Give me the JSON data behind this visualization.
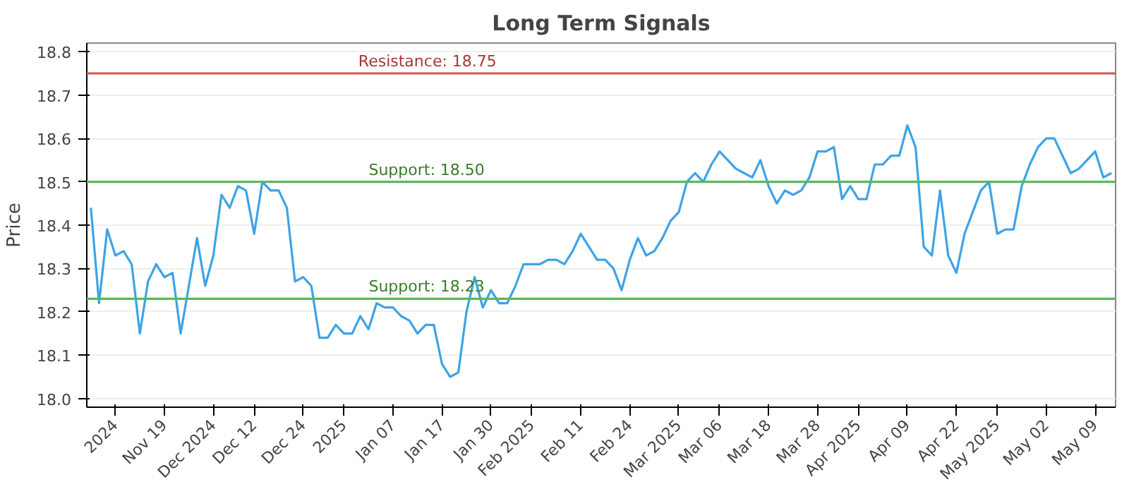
{
  "chart_data": {
    "type": "line",
    "title": "Long Term Signals",
    "ylabel": "Price",
    "categories": [
      null,
      null,
      null,
      "2024",
      null,
      null,
      null,
      null,
      null,
      "Nov 19",
      null,
      null,
      null,
      null,
      null,
      "Dec 2024",
      null,
      null,
      null,
      null,
      "Dec 12",
      null,
      null,
      null,
      null,
      null,
      "Dec 24",
      null,
      null,
      null,
      null,
      "2025",
      null,
      null,
      null,
      null,
      null,
      "Jan 07",
      null,
      null,
      null,
      null,
      null,
      "Jan 17",
      null,
      null,
      null,
      null,
      null,
      "Jan 30",
      null,
      null,
      null,
      null,
      "Feb 2025",
      null,
      null,
      null,
      null,
      null,
      "Feb 11",
      null,
      null,
      null,
      null,
      null,
      "Feb 24",
      null,
      null,
      null,
      null,
      null,
      "Mar 2025",
      null,
      null,
      null,
      null,
      "Mar 06",
      null,
      null,
      null,
      null,
      null,
      "Mar 18",
      null,
      null,
      null,
      null,
      null,
      "Mar 28",
      null,
      null,
      null,
      null,
      "Apr 2025",
      null,
      null,
      null,
      null,
      null,
      "Apr 09",
      null,
      null,
      null,
      null,
      null,
      "Apr 22",
      null,
      null,
      null,
      null,
      "May 2025",
      null,
      null,
      null,
      null,
      null,
      "May 02",
      null,
      null,
      null,
      null,
      null,
      "May 09",
      null,
      null
    ],
    "series": [
      {
        "color": "#3ea3e6",
        "values": [
          18.44,
          18.22,
          18.39,
          18.33,
          18.34,
          18.31,
          18.15,
          18.27,
          18.31,
          18.28,
          18.29,
          18.15,
          18.26,
          18.37,
          18.26,
          18.33,
          18.47,
          18.44,
          18.49,
          18.48,
          18.38,
          18.5,
          18.48,
          18.48,
          18.44,
          18.27,
          18.28,
          18.26,
          18.14,
          18.14,
          18.17,
          18.15,
          18.15,
          18.19,
          18.16,
          18.22,
          18.21,
          18.21,
          18.19,
          18.18,
          18.15,
          18.17,
          18.17,
          18.08,
          18.05,
          18.06,
          18.2,
          18.28,
          18.21,
          18.25,
          18.22,
          18.22,
          18.26,
          18.31,
          18.31,
          18.31,
          18.32,
          18.32,
          18.31,
          18.34,
          18.38,
          18.35,
          18.32,
          18.32,
          18.3,
          18.25,
          18.32,
          18.37,
          18.33,
          18.34,
          18.37,
          18.41,
          18.43,
          18.5,
          18.52,
          18.5,
          18.54,
          18.57,
          18.55,
          18.53,
          18.52,
          18.51,
          18.55,
          18.49,
          18.45,
          18.48,
          18.47,
          18.48,
          18.51,
          18.57,
          18.57,
          18.58,
          18.46,
          18.49,
          18.46,
          18.46,
          18.54,
          18.54,
          18.56,
          18.56,
          18.63,
          18.58,
          18.35,
          18.33,
          18.48,
          18.33,
          18.29,
          18.38,
          18.43,
          18.48,
          18.5,
          18.38,
          18.39,
          18.39,
          18.49,
          18.54,
          18.58,
          18.6,
          18.6,
          18.56,
          18.52,
          18.53,
          18.55,
          18.57,
          18.51,
          18.52
        ]
      }
    ],
    "ylim": [
      17.98,
      18.82
    ],
    "yticks": [
      {
        "value": 18.0,
        "label": "18.0"
      },
      {
        "value": 18.1,
        "label": "18.1"
      },
      {
        "value": 18.2,
        "label": "18.2"
      },
      {
        "value": 18.3,
        "label": "18.3"
      },
      {
        "value": 18.4,
        "label": "18.4"
      },
      {
        "value": 18.5,
        "label": "18.5"
      },
      {
        "value": 18.6,
        "label": "18.6"
      },
      {
        "value": 18.7,
        "label": "18.7"
      },
      {
        "value": 18.8,
        "label": "18.8"
      }
    ],
    "grid": "y",
    "marker": "none",
    "line_style": "solid",
    "ref_lines": [
      {
        "axis": "y",
        "value": 18.75,
        "label": "Resistance: 18.75",
        "color": "#d9534f"
      },
      {
        "axis": "y",
        "value": 18.5,
        "label": "Support: 18.50",
        "color": "#5cb85c"
      },
      {
        "axis": "y",
        "value": 18.23,
        "label": "Support: 18.23",
        "color": "#5cb85c"
      }
    ]
  }
}
